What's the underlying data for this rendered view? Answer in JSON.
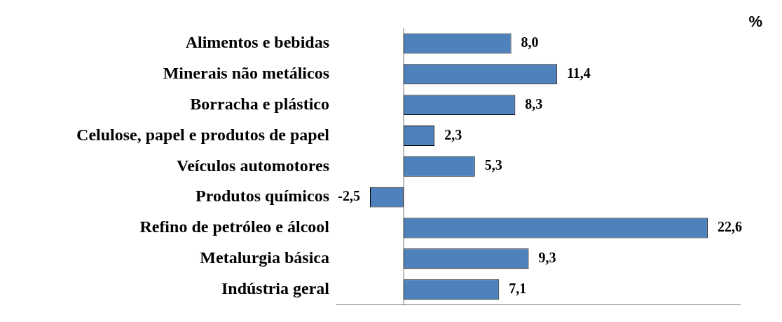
{
  "chart_data": {
    "type": "bar",
    "orientation": "horizontal",
    "categories": [
      "Alimentos e bebidas",
      "Minerais não metálicos",
      "Borracha e plástico",
      "Celulose, papel e produtos de papel",
      "Veículos automotores",
      "Produtos químicos",
      "Refino de petróleo e álcool",
      "Metalurgia básica",
      "Indústria geral"
    ],
    "values": [
      8.0,
      11.4,
      8.3,
      2.3,
      5.3,
      -2.5,
      22.6,
      9.3,
      7.1
    ],
    "value_labels": [
      "8,0",
      "11,4",
      "8,3",
      "2,3",
      "5,3",
      "-2,5",
      "22,6",
      "9,3",
      "7,1"
    ],
    "color": "#4f81bd",
    "annotations": [
      "%"
    ],
    "grid": false,
    "legend": false
  }
}
